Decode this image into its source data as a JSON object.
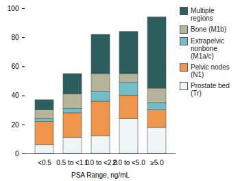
{
  "chart_data": {
    "type": "bar",
    "stacked": true,
    "categories": [
      "<0.5",
      "0.5 to <1.0",
      "1.0 to <2.0",
      "2.0 to <5.0",
      "≥5.0"
    ],
    "x_label": "PSA Range, ng/mL",
    "series": [
      {
        "name": "Prostate bed (Tr)",
        "color": "#eef5f5",
        "values": [
          6,
          11,
          12,
          24,
          18
        ]
      },
      {
        "name": "Pelvic nodes (N1)",
        "color": "#f0964c",
        "values": [
          16,
          17,
          24,
          16,
          12
        ]
      },
      {
        "name": "Extrapelvic nonbone (M1a/c)",
        "color": "#72bdc7",
        "values": [
          2,
          3,
          7,
          9,
          5
        ]
      },
      {
        "name": "Bone (M1b)",
        "color": "#b6b49b",
        "values": [
          6,
          10,
          12,
          6,
          10
        ]
      },
      {
        "name": "Multiple regions",
        "color": "#2c5e5d",
        "values": [
          7,
          14,
          27,
          29,
          49
        ]
      }
    ],
    "ylim": [
      0,
      100
    ],
    "yticks": [
      0,
      20,
      40,
      60,
      80,
      100
    ],
    "grid": false,
    "legend": "right"
  }
}
